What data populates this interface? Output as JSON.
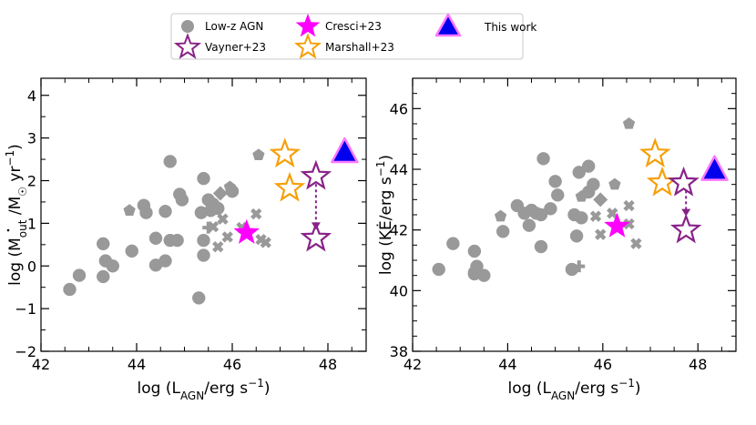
{
  "legend": [
    {
      "label": "Low-z AGN",
      "marker": "circle",
      "color": "#999999"
    },
    {
      "label": "Vayner+23",
      "marker": "star-open",
      "color": "#882288"
    },
    {
      "label": "Cresci+23",
      "marker": "star",
      "color": "#ff00ff"
    },
    {
      "label": "Marshall+23",
      "marker": "star-open",
      "color": "#f5a00a"
    },
    {
      "label": "This work",
      "marker": "triangle",
      "color": "#0000ee",
      "edge": "#ff77ff"
    }
  ],
  "colors": {
    "lowz": "#999999",
    "vayner": "#882288",
    "cresci": "#ff00ff",
    "marshall": "#f5a00a",
    "thiswork_fill": "#0000ee",
    "thiswork_edge": "#ff77ff"
  },
  "chart_data": [
    {
      "type": "scatter",
      "xlabel": "log (L_AGN/erg s^-1)",
      "ylabel": "log (Ṁ_out /M☉ yr^-1)",
      "xlim": [
        42,
        48.8
      ],
      "ylim": [
        -2,
        4.4
      ],
      "xticks": [
        42,
        44,
        46,
        48
      ],
      "yticks": [
        -2,
        -1,
        0,
        1,
        2,
        3,
        4
      ],
      "series": [
        {
          "name": "Low-z AGN",
          "marker": "circle",
          "points": [
            [
              42.6,
              -0.55
            ],
            [
              42.8,
              -0.22
            ],
            [
              43.3,
              0.52
            ],
            [
              43.3,
              -0.25
            ],
            [
              43.35,
              0.12
            ],
            [
              43.5,
              0.0
            ],
            [
              43.9,
              0.35
            ],
            [
              44.15,
              1.42
            ],
            [
              44.2,
              1.25
            ],
            [
              44.4,
              0.65
            ],
            [
              44.4,
              0.02
            ],
            [
              44.6,
              0.12
            ],
            [
              44.6,
              1.28
            ],
            [
              44.7,
              0.6
            ],
            [
              44.7,
              2.45
            ],
            [
              44.85,
              0.6
            ],
            [
              44.95,
              1.55
            ],
            [
              44.9,
              1.68
            ],
            [
              45.3,
              -0.75
            ],
            [
              45.35,
              1.25
            ],
            [
              45.4,
              0.25
            ],
            [
              45.4,
              2.05
            ],
            [
              45.5,
              1.55
            ],
            [
              45.6,
              1.45
            ],
            [
              45.7,
              1.35
            ],
            [
              45.55,
              1.3
            ],
            [
              45.4,
              0.6
            ],
            [
              46.0,
              1.75
            ]
          ]
        },
        {
          "name": "Low-z AGN",
          "marker": "pentagon",
          "points": [
            [
              43.85,
              1.3
            ],
            [
              45.95,
              1.85
            ],
            [
              46.55,
              2.6
            ]
          ]
        },
        {
          "name": "Low-z AGN",
          "marker": "diamond",
          "points": [
            [
              45.75,
              1.7
            ]
          ]
        },
        {
          "name": "Low-z AGN",
          "marker": "cross",
          "points": [
            [
              45.6,
              0.92
            ],
            [
              45.8,
              1.1
            ],
            [
              45.7,
              0.45
            ],
            [
              45.9,
              0.68
            ],
            [
              46.5,
              1.22
            ],
            [
              46.6,
              0.62
            ],
            [
              46.7,
              0.55
            ],
            [
              46.2,
              0.9
            ]
          ]
        },
        {
          "name": "Low-z AGN",
          "marker": "plus",
          "points": [
            [
              45.5,
              0.9
            ]
          ]
        },
        {
          "name": "Cresci+23",
          "marker": "star",
          "points": [
            [
              46.3,
              0.78
            ]
          ]
        },
        {
          "name": "Marshall+23",
          "marker": "star-open",
          "points": [
            [
              47.1,
              2.62
            ],
            [
              47.2,
              1.82
            ]
          ]
        },
        {
          "name": "Vayner+23",
          "marker": "star-open",
          "points": [
            [
              47.75,
              2.1
            ],
            [
              47.75,
              0.65
            ]
          ]
        },
        {
          "name": "This work",
          "marker": "triangle",
          "points": [
            [
              48.35,
              2.65
            ]
          ]
        }
      ],
      "arrow": {
        "from": [
          47.75,
          1.92
        ],
        "to": [
          47.75,
          0.85
        ],
        "color": "#882288"
      }
    },
    {
      "type": "scatter",
      "xlabel": "log (L_AGN/erg s^-1)",
      "ylabel": "log (KĖ/erg s^-1)",
      "xlim": [
        42,
        48.8
      ],
      "ylim": [
        38,
        47
      ],
      "xticks": [
        42,
        44,
        46,
        48
      ],
      "yticks": [
        38,
        40,
        42,
        44,
        46
      ],
      "series": [
        {
          "name": "Low-z AGN",
          "marker": "circle",
          "points": [
            [
              42.55,
              40.7
            ],
            [
              42.85,
              41.55
            ],
            [
              43.3,
              41.3
            ],
            [
              43.3,
              40.55
            ],
            [
              43.3,
              40.6
            ],
            [
              43.35,
              40.8
            ],
            [
              43.5,
              40.5
            ],
            [
              43.9,
              41.95
            ],
            [
              44.2,
              42.8
            ],
            [
              44.35,
              42.55
            ],
            [
              44.5,
              42.65
            ],
            [
              44.45,
              42.15
            ],
            [
              44.6,
              42.55
            ],
            [
              44.7,
              42.5
            ],
            [
              44.75,
              44.35
            ],
            [
              44.7,
              41.45
            ],
            [
              44.9,
              42.7
            ],
            [
              45.0,
              43.6
            ],
            [
              45.05,
              43.15
            ],
            [
              45.35,
              40.7
            ],
            [
              45.4,
              42.5
            ],
            [
              45.45,
              41.8
            ],
            [
              45.5,
              43.9
            ],
            [
              45.55,
              42.4
            ],
            [
              45.7,
              43.25
            ],
            [
              45.7,
              44.1
            ],
            [
              45.8,
              43.5
            ]
          ]
        },
        {
          "name": "Low-z AGN",
          "marker": "pentagon",
          "points": [
            [
              43.85,
              42.45
            ],
            [
              45.55,
              43.1
            ],
            [
              46.25,
              43.5
            ],
            [
              46.55,
              45.5
            ]
          ]
        },
        {
          "name": "Low-z AGN",
          "marker": "diamond",
          "points": [
            [
              45.95,
              43.0
            ]
          ]
        },
        {
          "name": "Low-z AGN",
          "marker": "cross",
          "points": [
            [
              45.85,
              42.45
            ],
            [
              45.95,
              41.85
            ],
            [
              46.2,
              42.55
            ],
            [
              46.55,
              42.2
            ],
            [
              46.55,
              42.8
            ],
            [
              46.7,
              41.55
            ]
          ]
        },
        {
          "name": "Low-z AGN",
          "marker": "plus",
          "points": [
            [
              45.5,
              40.8
            ]
          ]
        },
        {
          "name": "Cresci+23",
          "marker": "star",
          "points": [
            [
              46.3,
              42.12
            ]
          ]
        },
        {
          "name": "Marshall+23",
          "marker": "star-open",
          "points": [
            [
              47.1,
              44.5
            ],
            [
              47.25,
              43.55
            ]
          ]
        },
        {
          "name": "Vayner+23",
          "marker": "star-open",
          "points": [
            [
              47.7,
              43.55
            ],
            [
              47.75,
              42.0
            ]
          ]
        },
        {
          "name": "This work",
          "marker": "triangle",
          "points": [
            [
              48.35,
              43.95
            ]
          ]
        }
      ],
      "arrow": {
        "from": [
          47.75,
          43.3
        ],
        "to": [
          47.75,
          42.45
        ],
        "color": "#882288"
      }
    }
  ]
}
